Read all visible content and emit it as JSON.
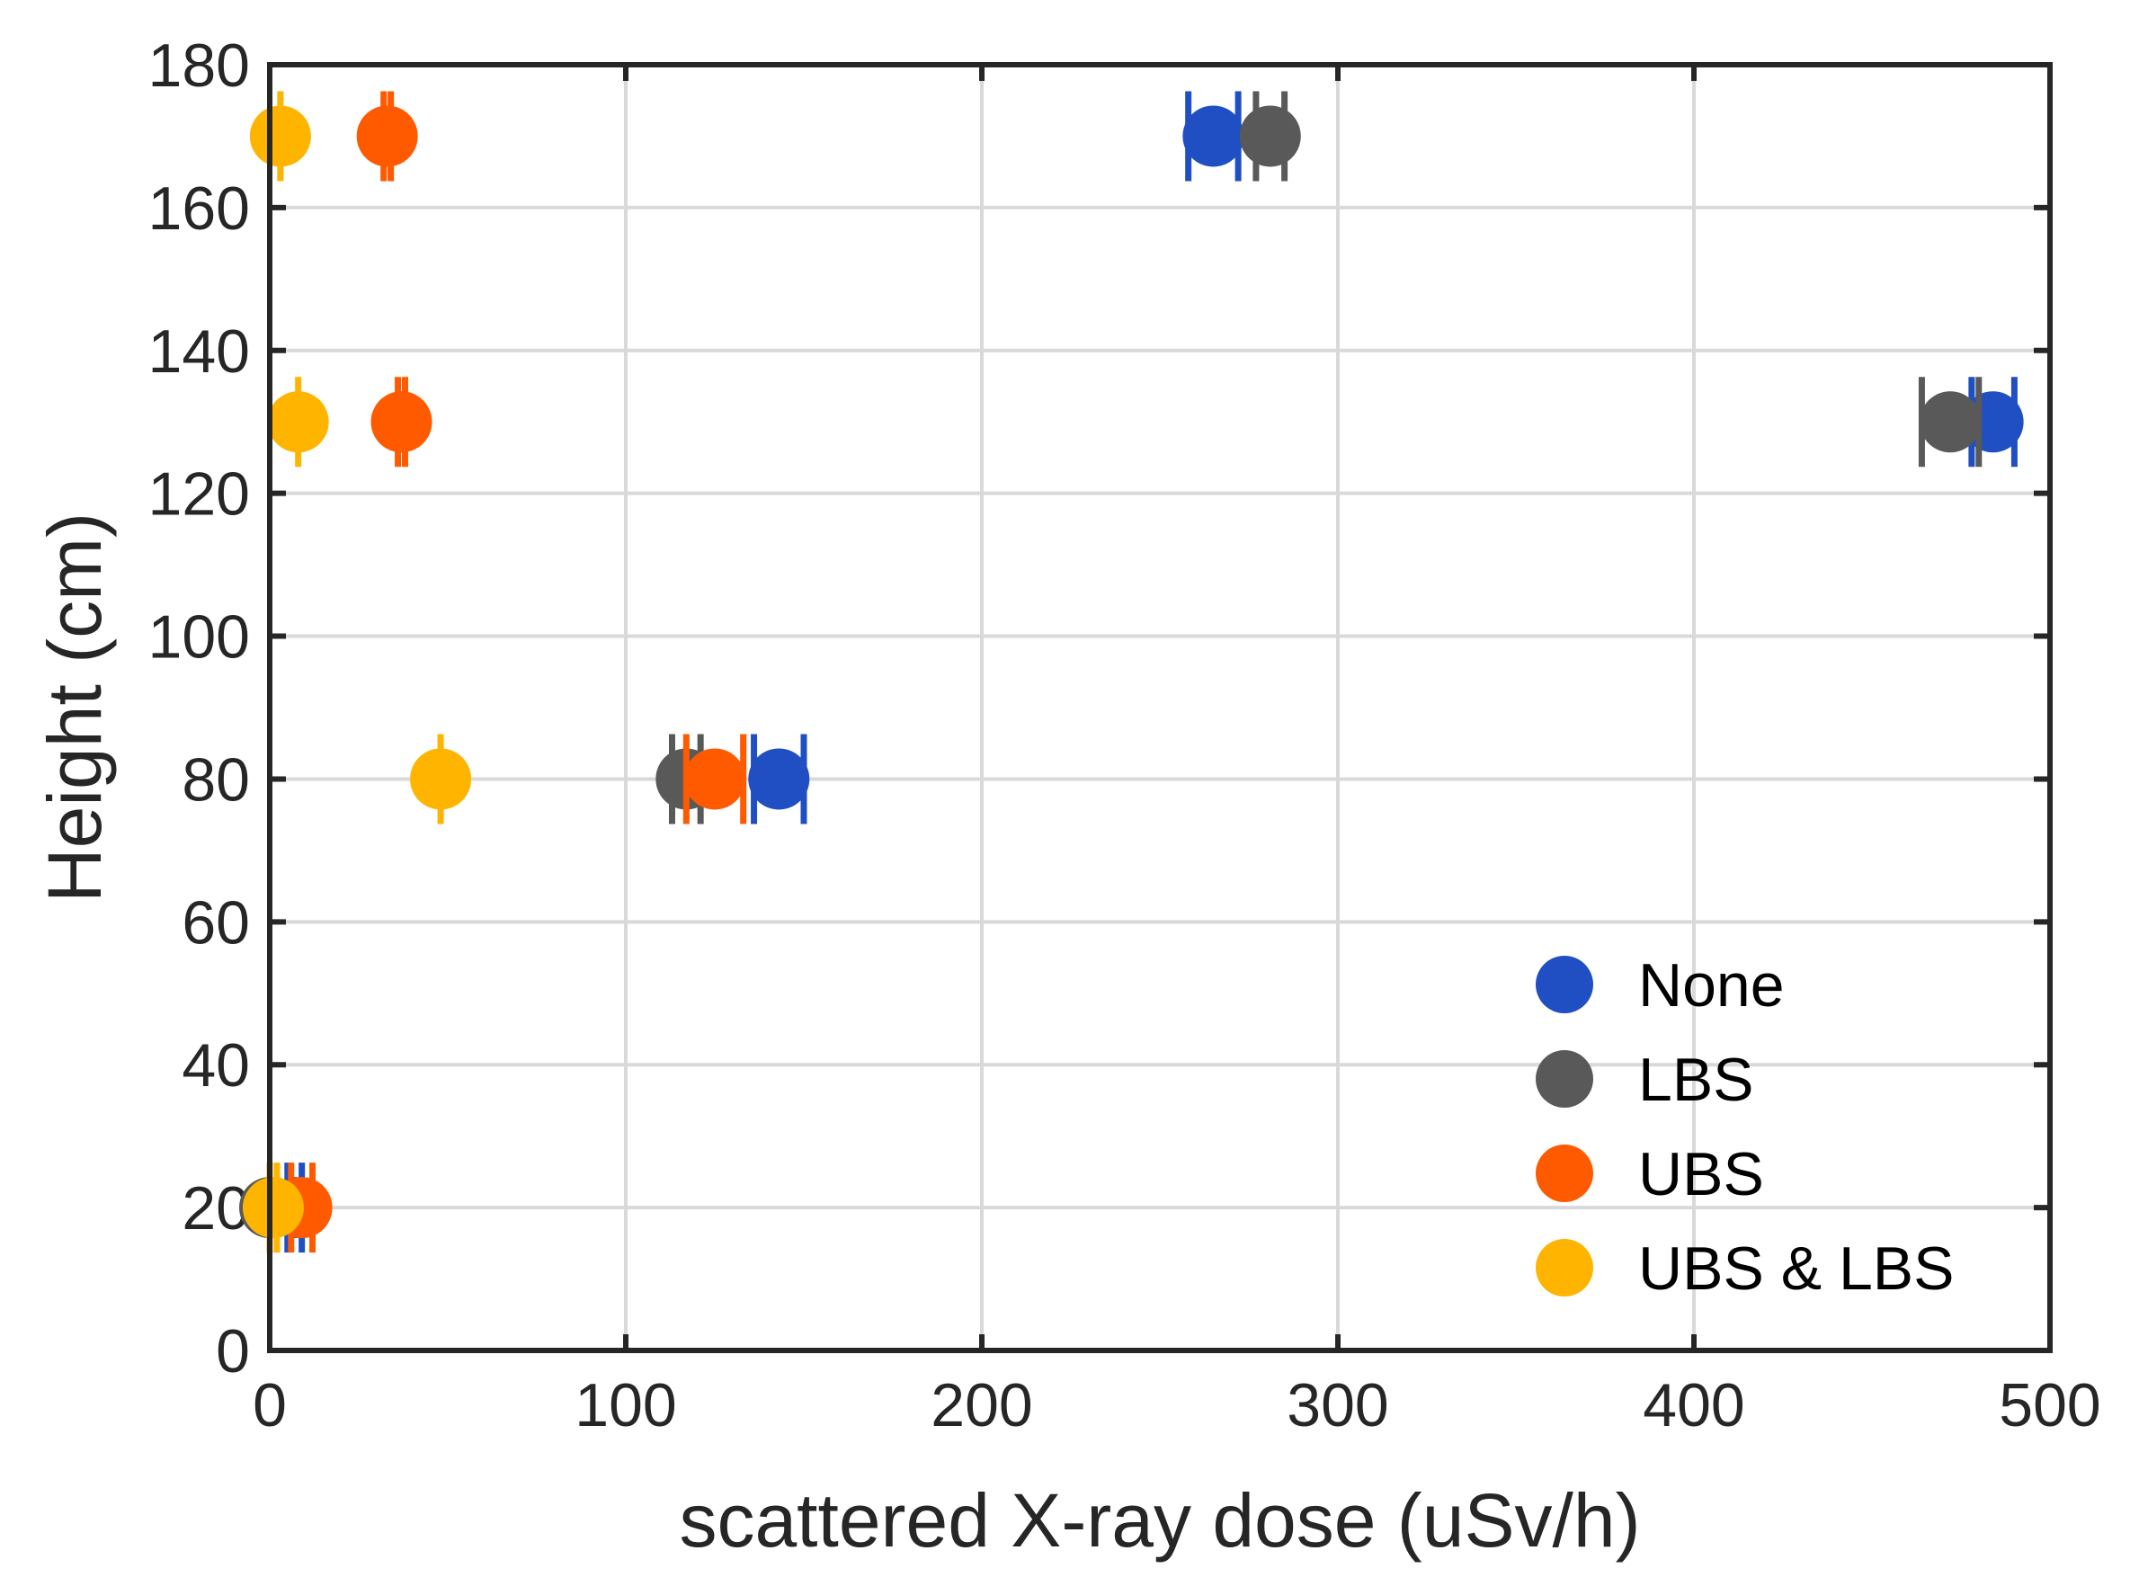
{
  "chart_data": {
    "type": "scatter",
    "title": "",
    "xlabel": "scattered X-ray dose (uSv/h)",
    "ylabel": "Height (cm)",
    "xlim": [
      0,
      500
    ],
    "ylim": [
      0,
      180
    ],
    "xticks": [
      "0",
      "100",
      "200",
      "300",
      "400",
      "500"
    ],
    "yticks": [
      "0",
      "20",
      "40",
      "60",
      "80",
      "100",
      "120",
      "140",
      "160",
      "180"
    ],
    "grid": true,
    "legend_position": "bottom-right",
    "series": [
      {
        "name": "None",
        "color": "#1f4fc2",
        "points": [
          {
            "x": 7,
            "y": 20,
            "xerr": 2
          },
          {
            "x": 143,
            "y": 80,
            "xerr": 7
          },
          {
            "x": 265,
            "y": 170,
            "xerr": 7
          },
          {
            "x": 484,
            "y": 130,
            "xerr": 6
          }
        ]
      },
      {
        "name": "LBS",
        "color": "#595959",
        "points": [
          {
            "x": 0,
            "y": 20,
            "xerr": 0
          },
          {
            "x": 117,
            "y": 80,
            "xerr": 4
          },
          {
            "x": 281,
            "y": 170,
            "xerr": 4
          },
          {
            "x": 472,
            "y": 130,
            "xerr": 8
          }
        ]
      },
      {
        "name": "UBS",
        "color": "#ff5a00",
        "points": [
          {
            "x": 9,
            "y": 20,
            "xerr": 3
          },
          {
            "x": 125,
            "y": 80,
            "xerr": 8
          },
          {
            "x": 33,
            "y": 170,
            "xerr": 1
          },
          {
            "x": 37,
            "y": 130,
            "xerr": 1
          }
        ]
      },
      {
        "name": "UBS & LBS",
        "color": "#ffb400",
        "points": [
          {
            "x": 1,
            "y": 20,
            "xerr": 1
          },
          {
            "x": 48,
            "y": 80,
            "xerr": 0
          },
          {
            "x": 3,
            "y": 170,
            "xerr": 0
          },
          {
            "x": 8,
            "y": 130,
            "xerr": 0
          }
        ]
      }
    ]
  }
}
